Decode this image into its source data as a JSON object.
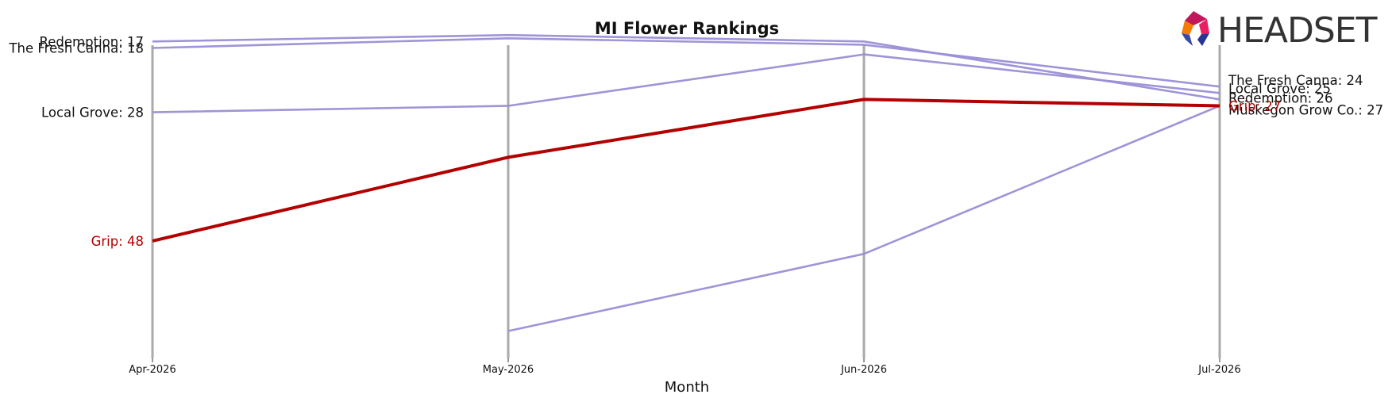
{
  "chart_data": {
    "type": "line",
    "title": "MI Flower Rankings",
    "xlabel": "Month",
    "ylabel": "",
    "x": [
      "Apr-2026",
      "May-2026",
      "Jun-2026",
      "Jul-2026"
    ],
    "ylim": [
      66,
      14
    ],
    "grid": "vertical",
    "highlight": "Grip",
    "colors": {
      "highlight": "#b30000",
      "other": "#9b8ed6",
      "vline": "#aaaaaa"
    },
    "series": [
      {
        "name": "Redemption",
        "values": [
          17,
          16,
          17,
          26
        ],
        "start_label": "Redemption: 17",
        "end_label": "Redemption: 26"
      },
      {
        "name": "The Fresh Canna",
        "values": [
          18,
          16.5,
          17.5,
          24
        ],
        "start_label": "The Fresh Canna: 18",
        "end_label": "The Fresh Canna: 24"
      },
      {
        "name": "Local Grove",
        "values": [
          28,
          27,
          19,
          25
        ],
        "start_label": "Local Grove: 28",
        "end_label": "Local Grove: 25"
      },
      {
        "name": "Grip",
        "values": [
          48,
          35,
          26,
          27
        ],
        "start_label": "Grip: 48",
        "end_label": "Grip: 27"
      },
      {
        "name": "Muskegon Grow Co.",
        "values": [
          null,
          62,
          50,
          27
        ],
        "start_label": "",
        "end_label": "Muskegon Grow Co.: 27"
      }
    ]
  },
  "logo": {
    "text": "HEADSET"
  }
}
